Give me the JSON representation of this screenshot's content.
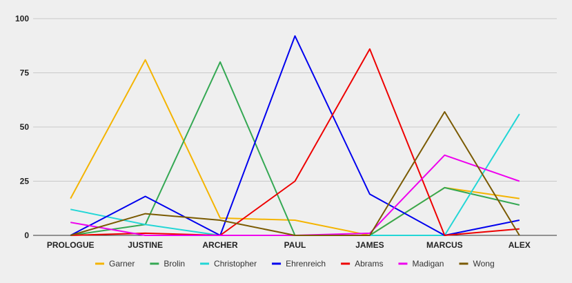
{
  "chart_data": {
    "type": "line",
    "title": "",
    "xlabel": "",
    "ylabel": "",
    "ylim": [
      0,
      100
    ],
    "yticks": [
      "0",
      "25",
      "50",
      "75",
      "100"
    ],
    "ytick_values": [
      0,
      25,
      50,
      75,
      100
    ],
    "grid": true,
    "legend_position": "bottom",
    "categories": [
      "PROLOGUE",
      "JUSTINE",
      "ARCHER",
      "PAUL",
      "JAMES",
      "MARCUS",
      "ALEX"
    ],
    "series": [
      {
        "name": "Garner",
        "color": "#f4b400",
        "values": [
          17,
          81,
          8,
          7,
          0,
          22,
          17
        ]
      },
      {
        "name": "Brolin",
        "color": "#34a853",
        "values": [
          0,
          5,
          80,
          0,
          0,
          22,
          14
        ]
      },
      {
        "name": "Christopher",
        "color": "#22d6d6",
        "values": [
          12,
          5,
          0,
          0,
          0,
          0,
          56
        ]
      },
      {
        "name": "Ehrenreich",
        "color": "#0000ee",
        "values": [
          0,
          18,
          0,
          92,
          19,
          0,
          7
        ]
      },
      {
        "name": "Abrams",
        "color": "#ee0000",
        "values": [
          0,
          1,
          0,
          25,
          86,
          0,
          3
        ]
      },
      {
        "name": "Madigan",
        "color": "#ee00ee",
        "values": [
          6,
          0,
          0,
          0,
          1,
          37,
          25
        ]
      },
      {
        "name": "Wong",
        "color": "#7a5a00",
        "values": [
          0,
          10,
          7,
          0,
          0,
          57,
          0
        ]
      }
    ]
  }
}
